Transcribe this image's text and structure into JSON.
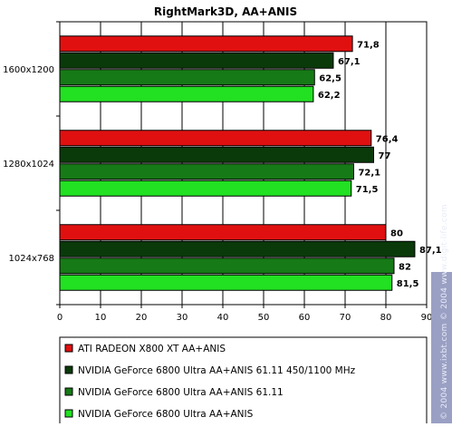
{
  "chart_data": {
    "type": "bar",
    "orientation": "horizontal",
    "title": "RightMark3D, AA+ANIS",
    "categories": [
      "1600x1200",
      "1280x1024",
      "1024x768"
    ],
    "series": [
      {
        "name": "ATI RADEON X800 XT AA+ANIS",
        "color": "#e01010",
        "values": [
          71.8,
          76.4,
          80
        ],
        "labels": [
          "71,8",
          "76,4",
          "80"
        ]
      },
      {
        "name": "NVIDIA GeForce 6800 Ultra AA+ANIS 61.11 450/1100 MHz",
        "color": "#0a3a0a",
        "values": [
          67.1,
          77,
          87.1
        ],
        "labels": [
          "67,1",
          "77",
          "87,1"
        ]
      },
      {
        "name": "NVIDIA GeForce 6800 Ultra AA+ANIS 61.11",
        "color": "#167a16",
        "values": [
          62.5,
          72.1,
          82
        ],
        "labels": [
          "62,5",
          "72,1",
          "82"
        ]
      },
      {
        "name": "NVIDIA GeForce 6800 Ultra AA+ANIS",
        "color": "#22e022",
        "values": [
          62.2,
          71.5,
          81.5
        ],
        "labels": [
          "62,2",
          "71,5",
          "81,5"
        ]
      }
    ],
    "xlim": [
      0,
      90
    ],
    "xticks": [
      0,
      10,
      20,
      30,
      40,
      50,
      60,
      70,
      80,
      90
    ],
    "grid": "vertical",
    "legend_placement": "bottom"
  },
  "watermark": {
    "text": "© 2004 www.ixbt.com  © 2004 www.digit-life.com"
  }
}
